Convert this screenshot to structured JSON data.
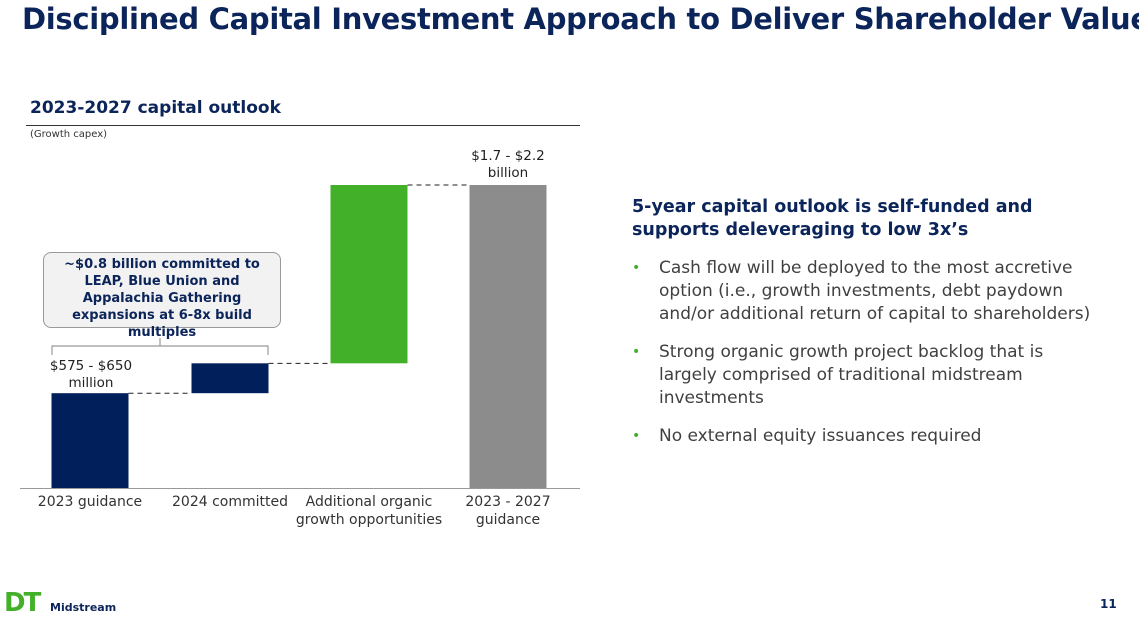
{
  "header": {
    "title": "Disciplined Capital Investment Approach to Deliver Shareholder Value"
  },
  "chart_data": {
    "type": "waterfall",
    "title": "2023-2027 capital outlook",
    "subtitle": "(Growth capex)",
    "categories": [
      "2023 guidance",
      "2024 committed",
      "Additional organic growth opportunities",
      "2023 - 2027 guidance"
    ],
    "values": [
      612.5,
      193,
      1152,
      1957.5
    ],
    "measure": [
      "absolute",
      "relative",
      "relative",
      "total"
    ],
    "colors": [
      "#001f5b",
      "#001f5b",
      "#43b02a",
      "#8c8c8c"
    ],
    "annotations": [
      "$575 - $650 million",
      "$1.7 - $2.2 billion",
      "~$0.8 billion committed to LEAP, Blue Union and Appalachia Gathering expansions at 6-8x build multiples"
    ]
  },
  "summary": {
    "heading": "5-year capital outlook is self-funded and supports deleveraging to low 3x’s",
    "bullets": [
      "Cash flow will be deployed to the most accretive option (i.e., growth investments, debt paydown and/or additional return of capital to shareholders)",
      "Strong organic growth project backlog that is largely comprised of traditional midstream investments",
      "No external equity issuances required"
    ]
  },
  "footer": {
    "logo_mark": "DT",
    "logo_text": "Midstream",
    "page_number": "11"
  }
}
